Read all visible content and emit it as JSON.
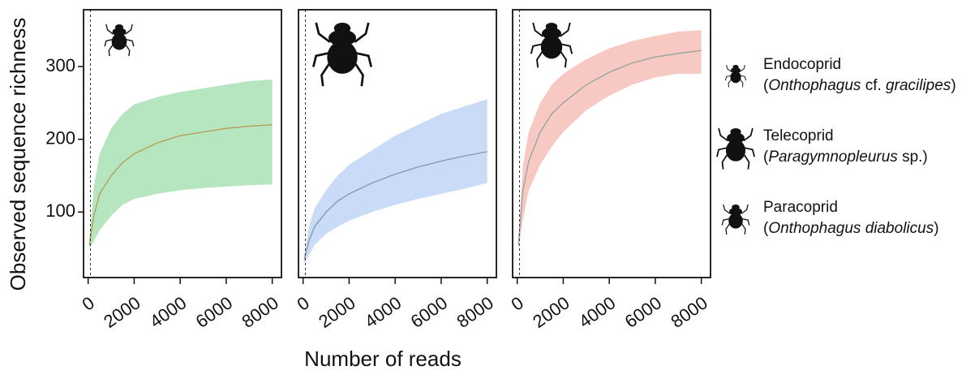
{
  "chart_data": [
    {
      "type": "band-line",
      "xlim": [
        -200,
        8400
      ],
      "ylim": [
        10,
        378
      ],
      "xticks": [
        0,
        2000,
        4000,
        6000,
        8000
      ],
      "yticks": [
        100,
        200,
        300
      ],
      "reference_x": 100,
      "x": [
        50,
        250,
        500,
        1000,
        1500,
        2000,
        3000,
        4000,
        5000,
        6000,
        7000,
        8000
      ],
      "series": [
        {
          "name": "Endocoprid",
          "species": [
            {
              "text": "(",
              "italic": false
            },
            {
              "text": "Onthophagus",
              "italic": true
            },
            {
              "text": " cf. ",
              "italic": false
            },
            {
              "text": "gracilipes",
              "italic": true
            },
            {
              "text": ")",
              "italic": false
            }
          ],
          "color": "#b39a52",
          "fill": "#b6e6bf",
          "values": [
            55,
            95,
            125,
            150,
            168,
            180,
            195,
            205,
            210,
            215,
            218,
            220
          ],
          "lower": [
            50,
            60,
            75,
            95,
            110,
            118,
            125,
            130,
            133,
            135,
            137,
            138
          ],
          "upper": [
            60,
            135,
            180,
            215,
            235,
            248,
            258,
            265,
            270,
            275,
            280,
            282
          ]
        }
      ]
    },
    {
      "type": "band-line",
      "xlim": [
        -200,
        8400
      ],
      "ylim": [
        10,
        378
      ],
      "xticks": [
        0,
        2000,
        4000,
        6000,
        8000
      ],
      "yticks": [
        100,
        200,
        300
      ],
      "reference_x": 100,
      "x": [
        50,
        250,
        500,
        1000,
        1500,
        2000,
        3000,
        4000,
        5000,
        6000,
        7000,
        8000
      ],
      "series": [
        {
          "name": "Telecoprid",
          "species": [
            {
              "text": "(",
              "italic": false
            },
            {
              "text": "Paragymnopleurus",
              "italic": true
            },
            {
              "text": " sp.)",
              "italic": false
            }
          ],
          "color": "#8a93a6",
          "fill": "#c9dbf7",
          "values": [
            35,
            60,
            80,
            100,
            115,
            125,
            140,
            152,
            162,
            170,
            177,
            183
          ],
          "lower": [
            30,
            40,
            55,
            70,
            80,
            88,
            100,
            110,
            118,
            125,
            132,
            140
          ],
          "upper": [
            40,
            80,
            105,
            130,
            150,
            165,
            185,
            205,
            220,
            235,
            245,
            255
          ]
        }
      ]
    },
    {
      "type": "band-line",
      "xlim": [
        -200,
        8400
      ],
      "ylim": [
        10,
        378
      ],
      "xticks": [
        0,
        2000,
        4000,
        6000,
        8000
      ],
      "yticks": [
        100,
        200,
        300
      ],
      "reference_x": 100,
      "x": [
        50,
        250,
        500,
        1000,
        1500,
        2000,
        3000,
        4000,
        5000,
        6000,
        7000,
        8000
      ],
      "series": [
        {
          "name": "Paracoprid",
          "species": [
            {
              "text": "(",
              "italic": false
            },
            {
              "text": "Onthophagus diabolicus",
              "italic": true
            },
            {
              "text": ")",
              "italic": false
            }
          ],
          "color": "#8fa3a0",
          "fill": "#f8c9c2",
          "values": [
            55,
            130,
            170,
            210,
            235,
            250,
            275,
            292,
            305,
            313,
            318,
            322
          ],
          "lower": [
            50,
            90,
            130,
            165,
            190,
            210,
            240,
            260,
            275,
            285,
            290,
            290
          ],
          "upper": [
            60,
            165,
            210,
            250,
            275,
            290,
            310,
            325,
            335,
            342,
            348,
            350
          ]
        }
      ]
    }
  ],
  "shared": {
    "y_label": "Observed sequence richness",
    "x_label": "Number of reads"
  }
}
